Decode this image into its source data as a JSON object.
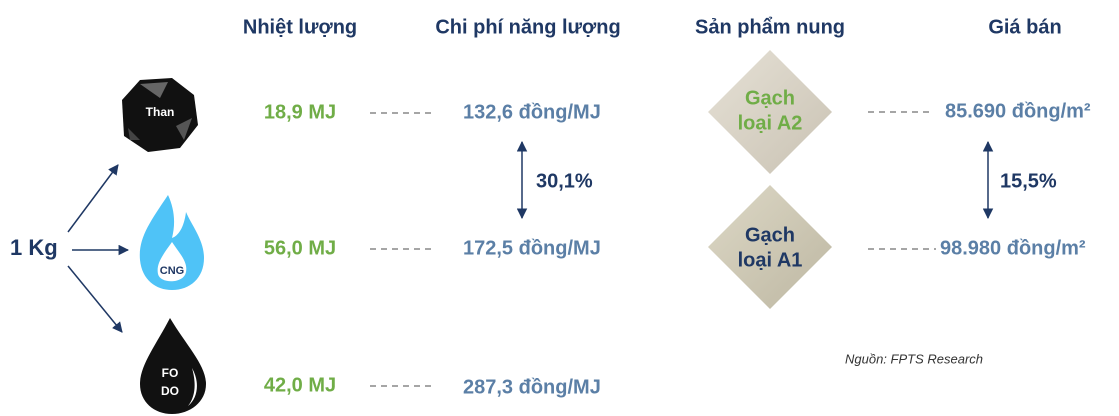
{
  "headers": [
    "Nhiệt lượng",
    "Chi phí năng lượng",
    "Sản phẩm nung",
    "Giá bán"
  ],
  "input": "1 Kg",
  "fuels": [
    {
      "label": "Than",
      "energy": "18,9 MJ",
      "cost": "132,6 đồng/MJ"
    },
    {
      "label": "CNG",
      "energy": "56,0 MJ",
      "cost": "172,5 đồng/MJ"
    },
    {
      "label": [
        "FO",
        "DO"
      ],
      "energy": "42,0 MJ",
      "cost": "287,3 đồng/MJ"
    }
  ],
  "cost_difference": "30,1%",
  "products": [
    {
      "name": [
        "Gạch",
        "loại A2"
      ],
      "price": "85.690 đồng/m²"
    },
    {
      "name": [
        "Gạch",
        "loại A1"
      ],
      "price": "98.980 đồng/m²"
    }
  ],
  "price_difference": "15,5%",
  "source": "Nguồn: FPTS Research"
}
